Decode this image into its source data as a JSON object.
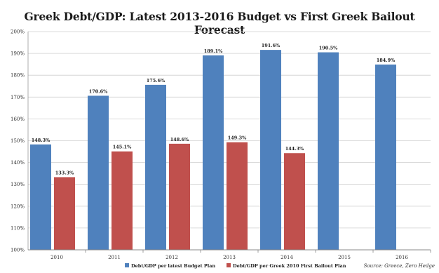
{
  "chart_data": {
    "type": "bar",
    "title": "Greek Debt/GDP: Latest 2013-2016 Budget vs First Greek Bailout Forecast",
    "categories": [
      "2010",
      "2011",
      "2012",
      "2013",
      "2014",
      "2015",
      "2016"
    ],
    "series": [
      {
        "name": "Debt/GDP per latest Budget Plan",
        "color": "#4f81bd",
        "values": [
          148.3,
          170.6,
          175.6,
          189.1,
          191.6,
          190.5,
          184.9
        ],
        "labels": [
          "148.3%",
          "170.6%",
          "175.6%",
          "189.1%",
          "191.6%",
          "190.5%",
          "184.9%"
        ]
      },
      {
        "name": "Debt/GDP per Greek 2010 First Bailout Plan",
        "color": "#c0504d",
        "values": [
          133.3,
          145.1,
          148.6,
          149.3,
          144.3,
          null,
          null
        ],
        "labels": [
          "133.3%",
          "145.1%",
          "148.6%",
          "149.3%",
          "144.3%",
          "",
          ""
        ]
      }
    ],
    "ylim": [
      100,
      200
    ],
    "yticks": [
      "100%",
      "110%",
      "120%",
      "130%",
      "140%",
      "150%",
      "160%",
      "170%",
      "180%",
      "190%",
      "200%"
    ],
    "grid": true,
    "legend": "bottom",
    "source": "Source: Greece, Zero Hedge"
  }
}
